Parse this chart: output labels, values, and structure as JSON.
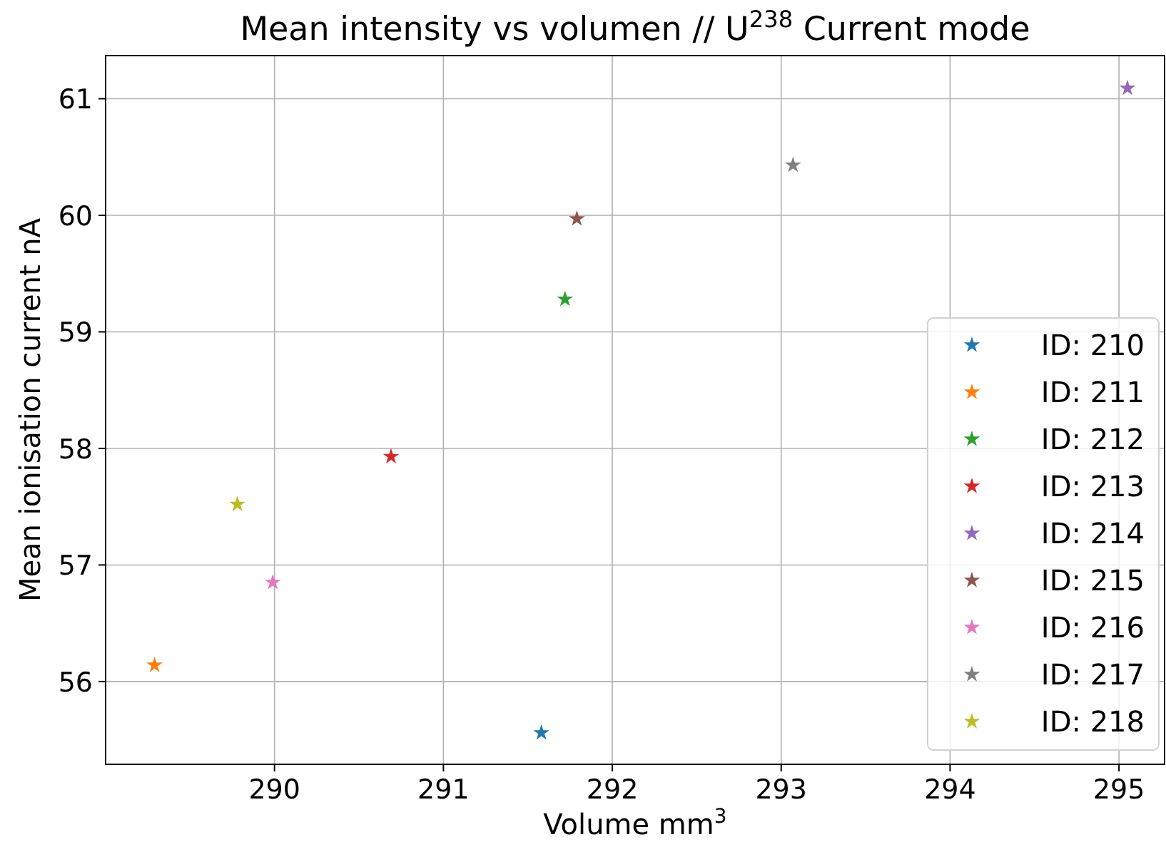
{
  "chart_data": {
    "type": "scatter",
    "title": "Mean intensity vs volumen // U$^{238}$ Current mode",
    "xlabel": "Volume mm$^{3}$",
    "ylabel": "Mean ionisation current nA",
    "xlim": [
      289.0,
      295.27
    ],
    "xticks": [
      290,
      291,
      292,
      293,
      294,
      295
    ],
    "ylim": [
      55.29,
      61.37
    ],
    "yticks": [
      56,
      57,
      58,
      59,
      60,
      61
    ],
    "grid": true,
    "legend": "bottom right",
    "marker": "star",
    "series": [
      {
        "name": "ID: 210",
        "color": "#1f77b4",
        "x": [
          291.58
        ],
        "values": [
          55.56
        ]
      },
      {
        "name": "ID: 211",
        "color": "#ff7f0e",
        "x": [
          289.29
        ],
        "values": [
          56.14
        ]
      },
      {
        "name": "ID: 212",
        "color": "#2ca02c",
        "x": [
          291.72
        ],
        "values": [
          59.28
        ]
      },
      {
        "name": "ID: 213",
        "color": "#d62728",
        "x": [
          290.69
        ],
        "values": [
          57.93
        ]
      },
      {
        "name": "ID: 214",
        "color": "#9467bd",
        "x": [
          295.05
        ],
        "values": [
          61.09
        ]
      },
      {
        "name": "ID: 215",
        "color": "#8c564b",
        "x": [
          291.79
        ],
        "values": [
          59.97
        ]
      },
      {
        "name": "ID: 216",
        "color": "#e377c2",
        "x": [
          289.99
        ],
        "values": [
          56.85
        ]
      },
      {
        "name": "ID: 217",
        "color": "#7f7f7f",
        "x": [
          293.07
        ],
        "values": [
          60.43
        ]
      },
      {
        "name": "ID: 218",
        "color": "#bcbd22",
        "x": [
          289.78
        ],
        "values": [
          57.52
        ]
      }
    ]
  }
}
